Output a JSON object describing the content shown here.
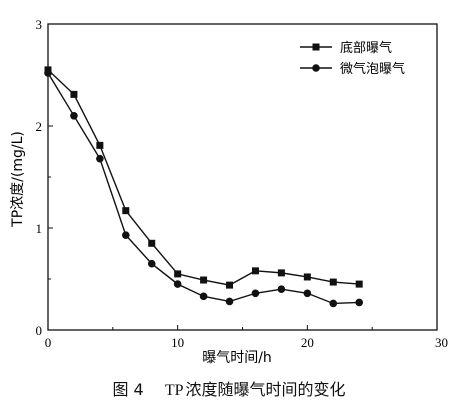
{
  "chart_data": {
    "type": "line",
    "xlabel": "曝气时间/h",
    "ylabel": "TP浓度/(mg/L)",
    "xlim": [
      0,
      30
    ],
    "ylim": [
      0,
      3
    ],
    "xticks": [
      "0",
      "10",
      "20",
      "30"
    ],
    "yticks": [
      "0",
      "1",
      "2",
      "3"
    ],
    "legend_position": "top-right",
    "grid": false,
    "series": [
      {
        "name": "底部曝气",
        "marker": "square",
        "x": [
          0,
          2,
          4,
          6,
          8,
          10,
          12,
          14,
          16,
          18,
          20,
          22,
          24
        ],
        "y": [
          2.55,
          2.31,
          1.81,
          1.17,
          0.85,
          0.55,
          0.49,
          0.44,
          0.58,
          0.56,
          0.52,
          0.47,
          0.45
        ]
      },
      {
        "name": "微气泡曝气",
        "marker": "circle",
        "x": [
          0,
          2,
          4,
          6,
          8,
          10,
          12,
          14,
          16,
          18,
          20,
          22,
          24
        ],
        "y": [
          2.52,
          2.1,
          1.68,
          0.93,
          0.65,
          0.45,
          0.33,
          0.28,
          0.36,
          0.4,
          0.36,
          0.26,
          0.27
        ]
      }
    ]
  },
  "caption": {
    "figure_number": "图 4",
    "title_prefix": "TP",
    "title_rest": "浓度随曝气时间的变化"
  }
}
